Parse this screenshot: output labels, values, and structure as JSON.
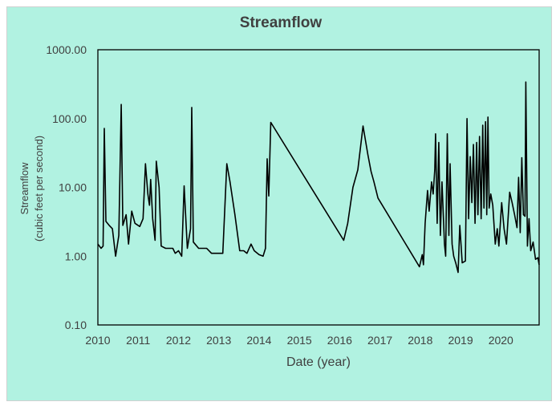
{
  "colors": {
    "background": "#b1f2e1",
    "plot_border": "#000000",
    "line": "#000000",
    "text": "#404040"
  },
  "chart_data": {
    "type": "line",
    "title": "Streamflow",
    "xlabel": "Date (year)",
    "ylabel_lines": [
      "Streamflow",
      "(cubic feet per second)"
    ],
    "yscale": "log",
    "ylim": [
      0.1,
      1000
    ],
    "xlim": [
      2010,
      2020.95
    ],
    "y_ticks": [
      0.1,
      1,
      10,
      100,
      1000
    ],
    "y_tick_labels": [
      "0.10",
      "1.00",
      "10.00",
      "100.00",
      "1000.00"
    ],
    "x_ticks": [
      2010,
      2011,
      2012,
      2013,
      2014,
      2015,
      2016,
      2017,
      2018,
      2019,
      2020
    ],
    "x_tick_labels": [
      "2010",
      "2011",
      "2012",
      "2013",
      "2014",
      "2015",
      "2016",
      "2017",
      "2018",
      "2019",
      "2020"
    ],
    "grid": false,
    "series": [
      {
        "name": "Streamflow",
        "points": [
          [
            2010.0,
            1.5
          ],
          [
            2010.08,
            1.3
          ],
          [
            2010.13,
            1.4
          ],
          [
            2010.16,
            72
          ],
          [
            2010.2,
            3.2
          ],
          [
            2010.28,
            2.8
          ],
          [
            2010.36,
            2.5
          ],
          [
            2010.44,
            1.0
          ],
          [
            2010.52,
            2.0
          ],
          [
            2010.58,
            160
          ],
          [
            2010.62,
            2.8
          ],
          [
            2010.7,
            4.0
          ],
          [
            2010.76,
            1.5
          ],
          [
            2010.84,
            4.5
          ],
          [
            2010.92,
            3.0
          ],
          [
            2011.04,
            2.7
          ],
          [
            2011.12,
            3.5
          ],
          [
            2011.18,
            22
          ],
          [
            2011.24,
            8.0
          ],
          [
            2011.28,
            5.5
          ],
          [
            2011.31,
            13
          ],
          [
            2011.36,
            3.5
          ],
          [
            2011.42,
            1.7
          ],
          [
            2011.45,
            24
          ],
          [
            2011.52,
            10
          ],
          [
            2011.57,
            1.4
          ],
          [
            2011.68,
            1.3
          ],
          [
            2011.86,
            1.3
          ],
          [
            2011.92,
            1.1
          ],
          [
            2012.0,
            1.2
          ],
          [
            2012.08,
            1.0
          ],
          [
            2012.14,
            10.5
          ],
          [
            2012.22,
            1.3
          ],
          [
            2012.3,
            2.5
          ],
          [
            2012.33,
            145
          ],
          [
            2012.37,
            1.6
          ],
          [
            2012.5,
            1.3
          ],
          [
            2012.7,
            1.3
          ],
          [
            2012.82,
            1.1
          ],
          [
            2013.1,
            1.1
          ],
          [
            2013.2,
            22
          ],
          [
            2013.28,
            12
          ],
          [
            2013.4,
            4.0
          ],
          [
            2013.52,
            1.2
          ],
          [
            2013.62,
            1.2
          ],
          [
            2013.7,
            1.1
          ],
          [
            2013.8,
            1.5
          ],
          [
            2013.88,
            1.2
          ],
          [
            2014.0,
            1.05
          ],
          [
            2014.1,
            1.0
          ],
          [
            2014.16,
            1.3
          ],
          [
            2014.2,
            26
          ],
          [
            2014.24,
            7.5
          ],
          [
            2014.29,
            88
          ],
          [
            2016.1,
            1.7
          ],
          [
            2016.2,
            3.0
          ],
          [
            2016.33,
            10
          ],
          [
            2016.45,
            18
          ],
          [
            2016.58,
            78
          ],
          [
            2016.7,
            30
          ],
          [
            2016.78,
            17
          ],
          [
            2016.85,
            12
          ],
          [
            2016.95,
            7.0
          ],
          [
            2017.98,
            0.7
          ],
          [
            2018.05,
            1.05
          ],
          [
            2018.08,
            0.75
          ],
          [
            2018.12,
            3.0
          ],
          [
            2018.18,
            9.0
          ],
          [
            2018.22,
            4.5
          ],
          [
            2018.28,
            12
          ],
          [
            2018.32,
            8.0
          ],
          [
            2018.36,
            18
          ],
          [
            2018.38,
            60
          ],
          [
            2018.42,
            3.0
          ],
          [
            2018.46,
            45
          ],
          [
            2018.5,
            2.0
          ],
          [
            2018.54,
            12
          ],
          [
            2018.6,
            1.5
          ],
          [
            2018.63,
            1.0
          ],
          [
            2018.67,
            60
          ],
          [
            2018.71,
            2.0
          ],
          [
            2018.74,
            22
          ],
          [
            2018.79,
            1.5
          ],
          [
            2018.83,
            1.0
          ],
          [
            2018.88,
            0.8
          ],
          [
            2018.94,
            0.58
          ],
          [
            2018.98,
            2.8
          ],
          [
            2019.04,
            0.8
          ],
          [
            2019.12,
            0.85
          ],
          [
            2019.16,
            100
          ],
          [
            2019.2,
            3.5
          ],
          [
            2019.24,
            28
          ],
          [
            2019.28,
            6.0
          ],
          [
            2019.32,
            42
          ],
          [
            2019.36,
            3.0
          ],
          [
            2019.4,
            45
          ],
          [
            2019.43,
            4.0
          ],
          [
            2019.47,
            55
          ],
          [
            2019.51,
            3.5
          ],
          [
            2019.55,
            80
          ],
          [
            2019.58,
            5.0
          ],
          [
            2019.62,
            90
          ],
          [
            2019.65,
            4.0
          ],
          [
            2019.68,
            105
          ],
          [
            2019.71,
            5.0
          ],
          [
            2019.75,
            8.0
          ],
          [
            2019.8,
            5.5
          ],
          [
            2019.86,
            1.5
          ],
          [
            2019.91,
            2.5
          ],
          [
            2019.95,
            1.4
          ],
          [
            2020.02,
            6.0
          ],
          [
            2020.08,
            2.5
          ],
          [
            2020.14,
            1.5
          ],
          [
            2020.22,
            8.5
          ],
          [
            2020.28,
            6.0
          ],
          [
            2020.34,
            4.0
          ],
          [
            2020.4,
            2.6
          ],
          [
            2020.44,
            14
          ],
          [
            2020.48,
            2.2
          ],
          [
            2020.52,
            27
          ],
          [
            2020.56,
            4.0
          ],
          [
            2020.6,
            3.8
          ],
          [
            2020.62,
            340
          ],
          [
            2020.66,
            1.4
          ],
          [
            2020.7,
            3.5
          ],
          [
            2020.74,
            1.2
          ],
          [
            2020.8,
            1.6
          ],
          [
            2020.86,
            0.9
          ],
          [
            2020.92,
            0.95
          ],
          [
            2020.95,
            0.75
          ]
        ]
      }
    ]
  }
}
